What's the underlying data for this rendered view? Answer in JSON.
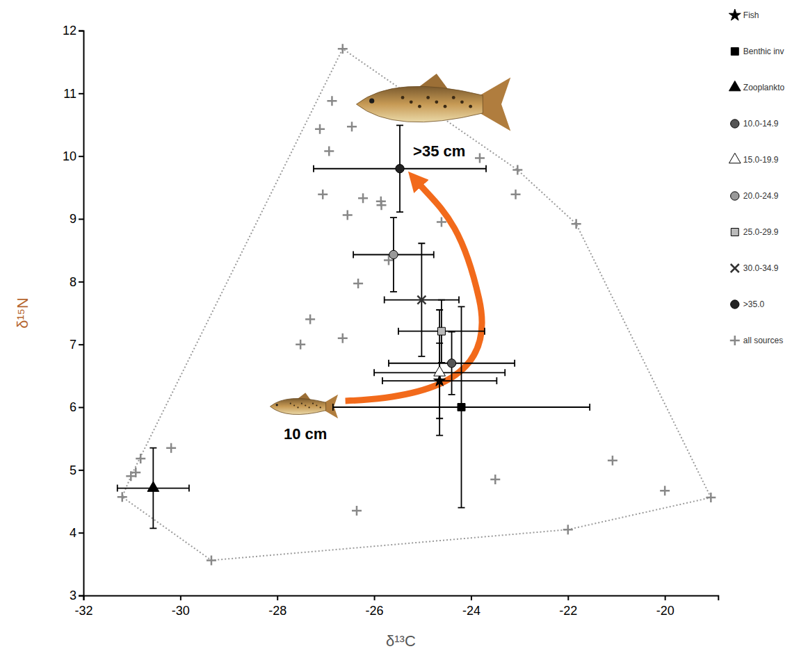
{
  "chart_data": {
    "type": "scatter",
    "x_label": "δ¹³C",
    "y_label": "δ¹⁵N",
    "xlim": [
      -32,
      -18.9
    ],
    "xticks": [
      -32,
      -30,
      -28,
      -26,
      -24,
      -22,
      -20
    ],
    "ylim": [
      3,
      12
    ],
    "yticks": [
      3,
      4,
      5,
      6,
      7,
      8,
      9,
      10,
      11,
      12
    ],
    "legend": "right",
    "series": [
      {
        "name": "Fish",
        "marker": "star",
        "color": "#000000",
        "x": [
          -24.65
        ],
        "values": [
          6.42
        ],
        "x_error": [
          1.18
        ],
        "y_error": [
          0.6
        ]
      },
      {
        "name": "Benthic inv",
        "marker": "square",
        "color": "#000000",
        "x": [
          -24.2
        ],
        "values": [
          6.0
        ],
        "x_error": [
          2.65
        ],
        "y_error": [
          1.6
        ]
      },
      {
        "name": "Zooplankto",
        "marker": "triangle",
        "color": "#000000",
        "x": [
          -30.56
        ],
        "values": [
          4.71
        ],
        "x_error": [
          0.74
        ],
        "y_error": [
          0.64
        ]
      },
      {
        "name": "10.0-14.9",
        "marker": "circle",
        "color": "#555555",
        "x": [
          -24.4
        ],
        "values": [
          6.7
        ],
        "x_error": [
          1.3
        ],
        "y_error": [
          0.5
        ]
      },
      {
        "name": "15.0-19.9",
        "marker": "triangle",
        "color": "#ffffff",
        "x": [
          -24.65
        ],
        "values": [
          6.55
        ],
        "x_error": [
          1.35
        ],
        "y_error": [
          1.0
        ]
      },
      {
        "name": "20.0-24.9",
        "marker": "circle",
        "color": "#999999",
        "x": [
          -25.6
        ],
        "values": [
          8.43
        ],
        "x_error": [
          0.83
        ],
        "y_error": [
          0.59
        ]
      },
      {
        "name": "25.0-29.9",
        "marker": "square",
        "color": "#bbbbbb",
        "x": [
          -24.61
        ],
        "values": [
          7.21
        ],
        "x_error": [
          0.89
        ],
        "y_error": [
          0.5
        ]
      },
      {
        "name": "30.0-34.9",
        "marker": "cross",
        "color": "#333333",
        "x": [
          -25.02
        ],
        "values": [
          7.71
        ],
        "x_error": [
          0.77
        ],
        "y_error": [
          0.9
        ]
      },
      {
        "name": ">35.0",
        "marker": "circle",
        "color": "#222222",
        "x": [
          -25.47
        ],
        "values": [
          9.8
        ],
        "x_error": [
          1.78
        ],
        "y_error": [
          0.69
        ]
      },
      {
        "name": "all sources",
        "marker": "plus",
        "color": "#888888",
        "line_style": "dotted",
        "x": [
          -19.05,
          -20.0,
          -21.08,
          -22.0,
          -21.83,
          -23.04,
          -23.08,
          -23.82,
          -24.61,
          -23.5,
          -26.36,
          -25.86,
          -25.85,
          -26.23,
          -26.55,
          -27.06,
          -26.93,
          -27.12,
          -26.87,
          -26.65,
          -26.46,
          -25.7,
          -26.33,
          -27.32,
          -27.52,
          -26.65,
          -30.19,
          -30.82,
          -30.92,
          -31.02,
          -31.2,
          -29.36
        ],
        "values": [
          4.56,
          4.67,
          5.15,
          4.05,
          8.92,
          9.78,
          9.39,
          9.97,
          8.95,
          4.85,
          4.35,
          9.28,
          9.22,
          9.33,
          9.06,
          9.39,
          10.08,
          10.43,
          10.88,
          11.71,
          10.47,
          8.34,
          7.97,
          7.4,
          7.0,
          7.1,
          5.35,
          5.18,
          4.96,
          4.9,
          4.57,
          3.56
        ]
      }
    ],
    "annotations": [
      {
        "text": ">35 cm"
      },
      {
        "text": "10 cm"
      }
    ]
  }
}
